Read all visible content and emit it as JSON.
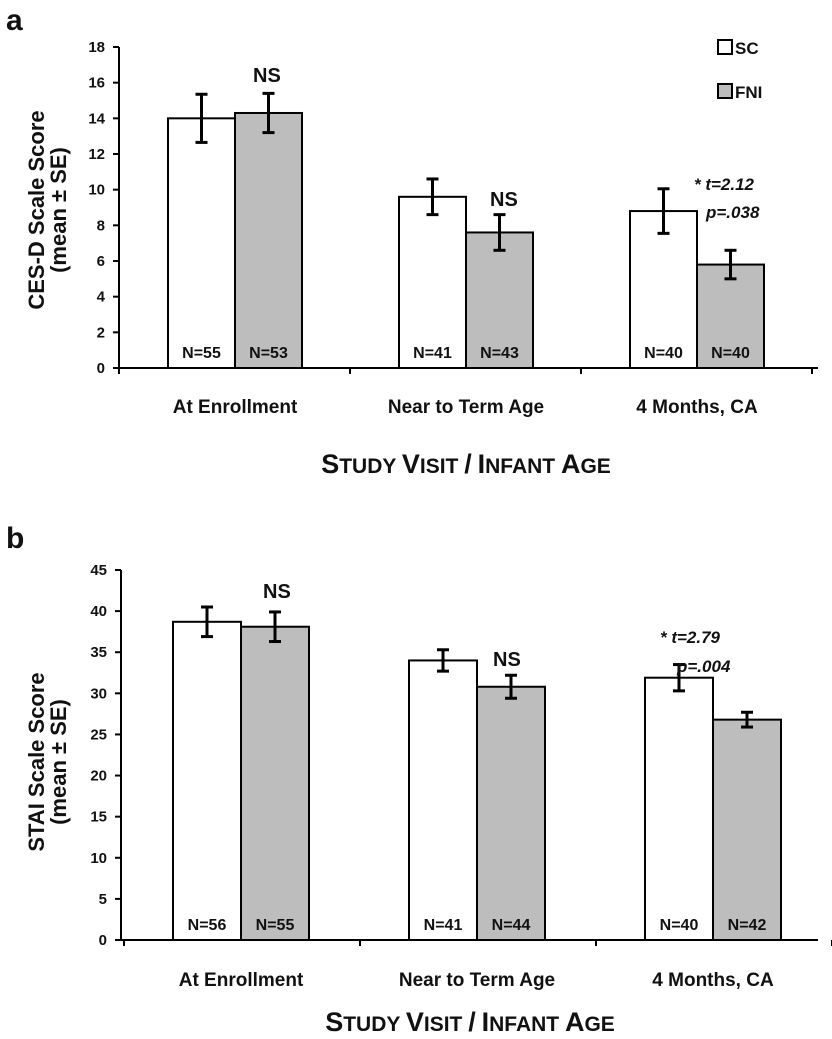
{
  "chart_data": [
    {
      "type": "bar",
      "panel": "a",
      "categories": [
        "At Enrollment",
        "Near to Term Age",
        "4 Months, CA"
      ],
      "ylabel": [
        "CES-D Scale Score",
        "(mean ± SE)"
      ],
      "xlabel": "Study Visit / Infant Age",
      "ylim": [
        0,
        18
      ],
      "yticks": [
        0,
        2,
        4,
        6,
        8,
        10,
        12,
        14,
        16,
        18
      ],
      "series": [
        {
          "name": "SC",
          "color": "#ffffff",
          "values": [
            14.0,
            9.6,
            8.8
          ],
          "se": [
            1.35,
            1.0,
            1.25
          ],
          "n_labels": [
            "N=55",
            "N=41",
            "N=40"
          ]
        },
        {
          "name": "FNI",
          "color": "#bdbdbd",
          "values": [
            14.3,
            7.6,
            5.8
          ],
          "se": [
            1.1,
            1.0,
            0.8
          ],
          "n_labels": [
            "N=53",
            "N=43",
            "N=40"
          ]
        }
      ],
      "annotations": [
        "NS",
        "NS",
        "* t=2.12",
        "p=.038"
      ]
    },
    {
      "type": "bar",
      "panel": "b",
      "categories": [
        "At Enrollment",
        "Near to Term Age",
        "4 Months, CA"
      ],
      "ylabel": [
        "STAI Scale Score",
        "(mean ± SE)"
      ],
      "xlabel": "Study Visit / Infant Age",
      "ylim": [
        0,
        45
      ],
      "yticks": [
        0,
        5,
        10,
        15,
        20,
        25,
        30,
        35,
        40,
        45
      ],
      "series": [
        {
          "name": "SC",
          "color": "#ffffff",
          "values": [
            38.7,
            34.0,
            31.9
          ],
          "se": [
            1.8,
            1.3,
            1.6
          ],
          "n_labels": [
            "N=56",
            "N=41",
            "N=40"
          ]
        },
        {
          "name": "FNI",
          "color": "#bdbdbd",
          "values": [
            38.1,
            30.8,
            26.8
          ],
          "se": [
            1.8,
            1.4,
            0.9
          ],
          "n_labels": [
            "N=55",
            "N=44",
            "N=42"
          ]
        }
      ],
      "annotations": [
        "NS",
        "NS",
        "* t=2.79",
        "p=.004"
      ]
    }
  ]
}
